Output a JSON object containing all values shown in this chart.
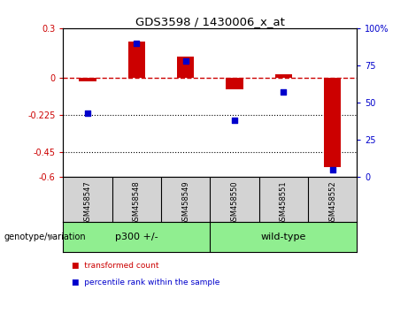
{
  "title": "GDS3598 / 1430006_x_at",
  "samples": [
    "GSM458547",
    "GSM458548",
    "GSM458549",
    "GSM458550",
    "GSM458551",
    "GSM458552"
  ],
  "transformed_count": [
    -0.02,
    0.22,
    0.13,
    -0.07,
    0.02,
    -0.54
  ],
  "percentile_rank": [
    43,
    90,
    78,
    38,
    57,
    5
  ],
  "bar_color": "#cc0000",
  "dot_color": "#0000cc",
  "left_ylim": [
    -0.6,
    0.3
  ],
  "left_yticks": [
    0.3,
    0.0,
    -0.225,
    -0.45,
    -0.6
  ],
  "left_ytick_labels": [
    "0.3",
    "0",
    "-0.225",
    "-0.45",
    "-0.6"
  ],
  "right_ylim": [
    0,
    100
  ],
  "right_yticks": [
    100,
    75,
    50,
    25,
    0
  ],
  "right_ytick_labels": [
    "100%",
    "75",
    "50",
    "25",
    "0"
  ],
  "hline_color": "#cc0000",
  "dotted_lines": [
    -0.225,
    -0.45
  ],
  "group_label": "genotype/variation",
  "group_names": [
    "p300 +/-",
    "wild-type"
  ],
  "group_split": 3,
  "group_color": "#90ee90",
  "sample_bg_color": "#d3d3d3",
  "legend_items": [
    {
      "label": "transformed count",
      "color": "#cc0000"
    },
    {
      "label": "percentile rank within the sample",
      "color": "#0000cc"
    }
  ],
  "bg_color": "#ffffff",
  "bar_width": 0.35,
  "dot_size": 22
}
